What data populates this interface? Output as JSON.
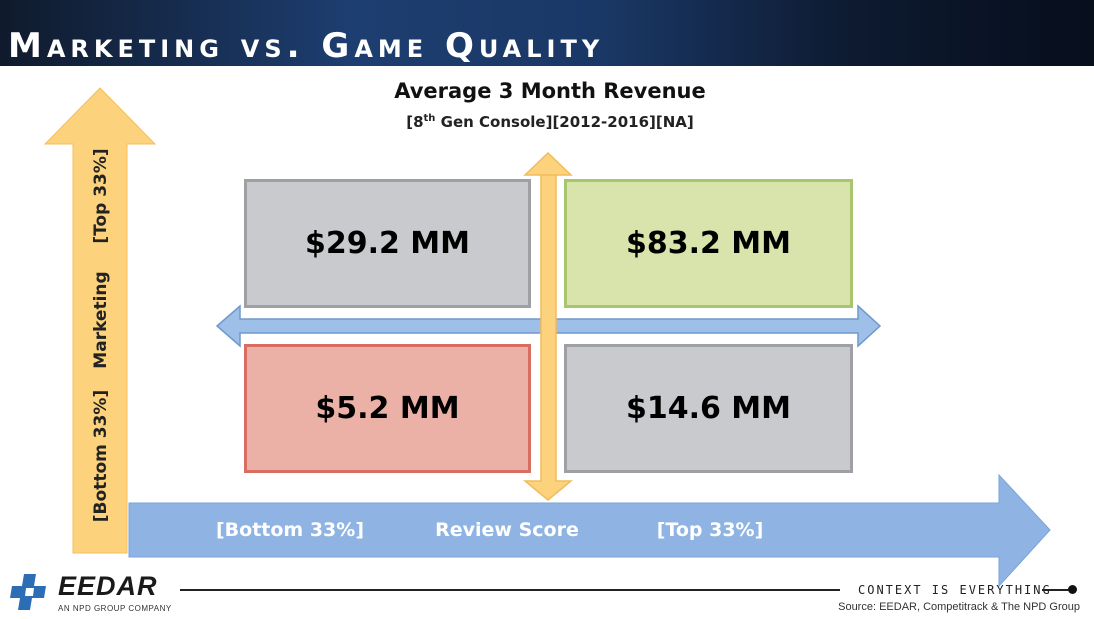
{
  "header": {
    "title": "Marketing vs. Game Quality"
  },
  "chart": {
    "title": "Average 3 Month Revenue",
    "subtitle_pre": "[8",
    "subtitle_sup": "th",
    "subtitle_post": " Gen Console][2012-2016][NA]"
  },
  "quadrants": {
    "top_left": "$29.2 MM",
    "top_right": "$83.2 MM",
    "bottom_left": "$5.2 MM",
    "bottom_right": "$14.6 MM"
  },
  "y_axis": {
    "top": "[Top 33%]",
    "middle": "Marketing",
    "bottom": "[Bottom 33%]"
  },
  "x_axis": {
    "left": "[Bottom 33%]",
    "middle": "Review Score",
    "right": "[Top 33%]"
  },
  "footer": {
    "logo": "EEDAR",
    "logo_sub": "AN NPD GROUP COMPANY",
    "tagline": "CONTEXT IS EVERYTHING",
    "source": "Source: EEDAR, Competitrack & The NPD Group"
  },
  "colors": {
    "marketing_arrow": "#fcd27c",
    "review_arrow": "#8fb4e3",
    "cross_arrow_blue": "#9dbfe8",
    "cross_arrow_orange": "#fcd27c"
  }
}
